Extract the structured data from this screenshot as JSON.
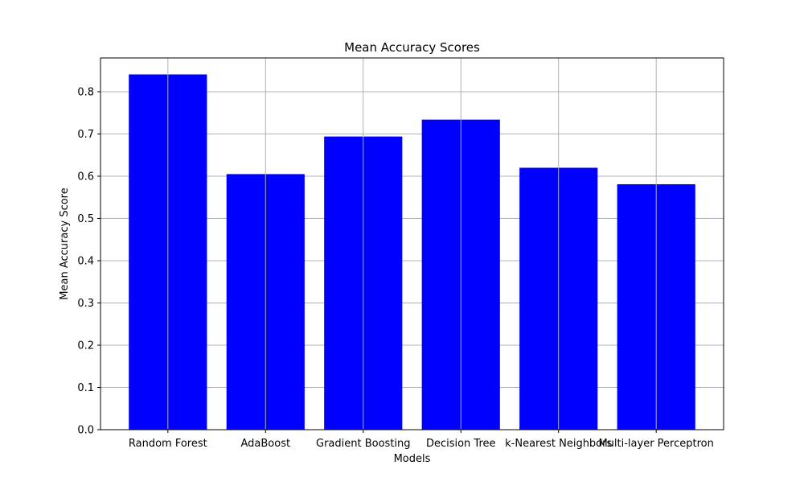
{
  "chart_data": {
    "type": "bar",
    "title": "Mean Accuracy Scores",
    "xlabel": "Models",
    "ylabel": "Mean Accuracy Score",
    "categories": [
      "Random Forest",
      "AdaBoost",
      "Gradient Boosting",
      "Decision Tree",
      "k-Nearest Neighbors",
      "Multi-layer Perceptron"
    ],
    "values": [
      0.841,
      0.605,
      0.694,
      0.734,
      0.62,
      0.581
    ],
    "ylim": [
      0,
      0.88
    ],
    "yticks": [
      "0.0",
      "0.1",
      "0.2",
      "0.3",
      "0.4",
      "0.5",
      "0.6",
      "0.7",
      "0.8"
    ],
    "grid": true,
    "bar_color": "#0000ff",
    "grid_color": "#b0b0b0"
  }
}
